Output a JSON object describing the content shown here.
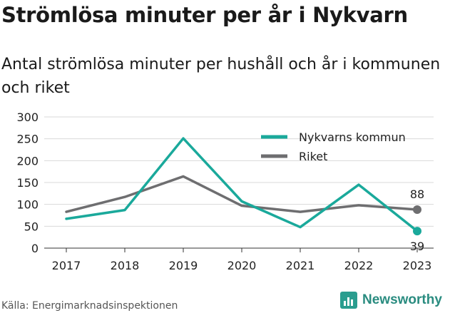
{
  "title": "Strömlösa minuter per år i Nykvarn",
  "subtitle": "Antal strömlösa minuter per hushåll och år i kommunen och riket",
  "source": "Källa: Energimarknadsinspektionen",
  "brand": "Newsworthy",
  "colors": {
    "nykvarn": "#1aa99b",
    "riket": "#6e6e70",
    "grid": "#d9d9d9"
  },
  "chart_data": {
    "type": "line",
    "x": [
      "2017",
      "2018",
      "2019",
      "2020",
      "2021",
      "2022",
      "2023"
    ],
    "ylim": [
      0,
      300
    ],
    "yticks": [
      0,
      50,
      100,
      150,
      200,
      250,
      300
    ],
    "legend_position": "top-right",
    "grid": true,
    "series": [
      {
        "name": "Nykvarns kommun",
        "values": [
          67,
          87,
          251,
          107,
          48,
          145,
          39
        ],
        "end_label": "39"
      },
      {
        "name": "Riket",
        "values": [
          83,
          117,
          164,
          97,
          83,
          98,
          88
        ],
        "end_label": "88"
      }
    ]
  }
}
